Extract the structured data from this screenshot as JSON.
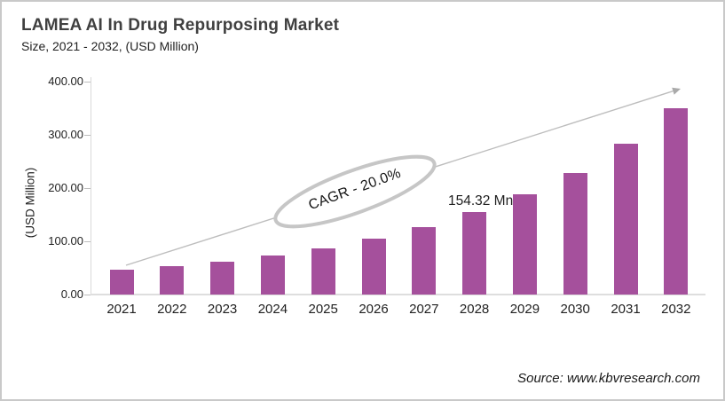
{
  "header": {
    "title": "LAMEA AI In Drug Repurposing Market",
    "subtitle": "Size, 2021 - 2032, (USD Million)"
  },
  "chart_data": {
    "type": "bar",
    "title": "LAMEA AI In Drug Repurposing Market Size, 2021 - 2032, (USD Million)",
    "categories": [
      "2021",
      "2022",
      "2023",
      "2024",
      "2025",
      "2026",
      "2027",
      "2028",
      "2029",
      "2030",
      "2031",
      "2032"
    ],
    "values": [
      47,
      53,
      62,
      74,
      86,
      105,
      127,
      154.32,
      188,
      229,
      283,
      350
    ],
    "labeled_point": {
      "category": "2028",
      "value": 154.32,
      "label": "154.32 Mn"
    },
    "xlabel": "",
    "ylabel": "(USD Million)",
    "ylim": [
      0,
      400
    ],
    "y_ticks": [
      0,
      100,
      200,
      300,
      400
    ],
    "y_tick_labels": [
      "0.00",
      "100.00",
      "200.00",
      "300.00",
      "400.00"
    ],
    "grid": false,
    "legend": "none",
    "bar_color": "#a5509c",
    "annotation_cagr": "CAGR - 20.0%",
    "trend_arrow": true
  },
  "footer": {
    "source": "Source: www.kbvresearch.com"
  },
  "colors": {
    "bar": "#a5509c",
    "axis_line": "#d9d9d9",
    "annotation_gray": "#c6c6c6",
    "arrow_gray": "#bdbdbd",
    "title_text": "#404040",
    "body_text": "#1f1f1f"
  }
}
